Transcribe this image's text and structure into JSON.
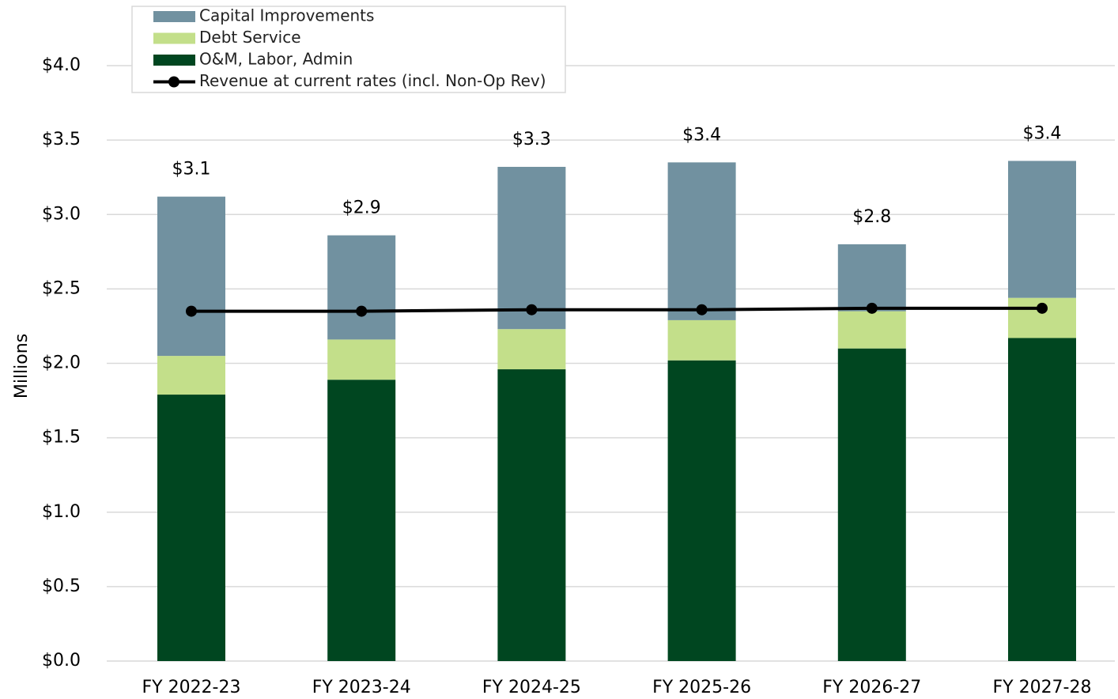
{
  "chart_data": {
    "type": "stacked_bar_line",
    "y_label": "Millions",
    "categories": [
      "FY 2022-23",
      "FY 2023-24",
      "FY 2024-25",
      "FY 2025-26",
      "FY 2026-27",
      "FY 2027-28"
    ],
    "series": [
      {
        "name": "O&M, Labor, Admin",
        "color": "#004620",
        "kind": "bar",
        "values": [
          1.79,
          1.89,
          1.96,
          2.02,
          2.1,
          2.17
        ]
      },
      {
        "name": "Debt Service",
        "color": "#c3df8a",
        "kind": "bar",
        "values": [
          0.26,
          0.27,
          0.27,
          0.27,
          0.25,
          0.27
        ]
      },
      {
        "name": "Capital Improvements",
        "color": "#7191a0",
        "kind": "bar",
        "values": [
          1.07,
          0.7,
          1.09,
          1.06,
          0.45,
          0.92
        ]
      },
      {
        "name": "Revenue at current rates (incl. Non-Op Rev)",
        "color": "#000000",
        "kind": "line",
        "values": [
          2.35,
          2.35,
          2.36,
          2.36,
          2.37,
          2.37
        ]
      }
    ],
    "totals": [
      3.12,
      2.86,
      3.32,
      3.35,
      2.8,
      3.36
    ],
    "total_labels": [
      "$3.1",
      "$2.9",
      "$3.3",
      "$3.4",
      "$2.8",
      "$3.4"
    ],
    "ylim": [
      0,
      4.0
    ],
    "yticks": [
      {
        "value": 0,
        "label": "$0.0"
      },
      {
        "value": 0.5,
        "label": "$0.5"
      },
      {
        "value": 1,
        "label": "$1.0"
      },
      {
        "value": 1.5,
        "label": "$1.5"
      },
      {
        "value": 2,
        "label": "$2.0"
      },
      {
        "value": 2.5,
        "label": "$2.5"
      },
      {
        "value": 3,
        "label": "$3.0"
      },
      {
        "value": 3.5,
        "label": "$3.5"
      },
      {
        "value": 4,
        "label": "$4.0"
      }
    ],
    "grid": true,
    "legend": "upper left"
  }
}
